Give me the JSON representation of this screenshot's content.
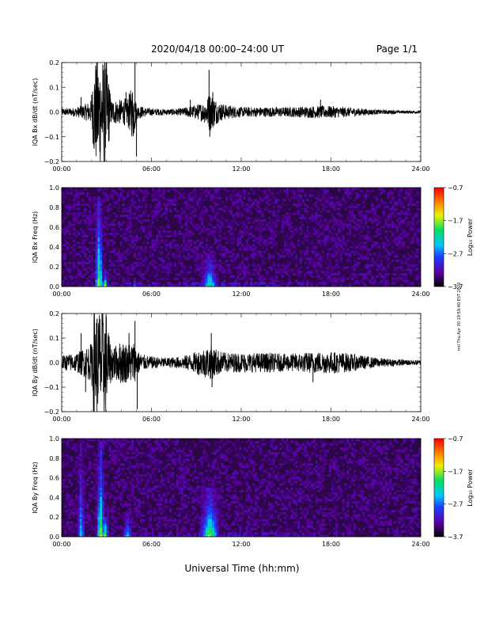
{
  "header": {
    "date_range": "2020/04/18  00:00–24:00 UT",
    "page": "Page 1/1"
  },
  "footer": {
    "xlabel": "Universal Time (hh:mm)"
  },
  "side_note": "mtl Thu Apr 30 19:59:40 EST 2020",
  "colors": {
    "trace": "#000000",
    "spectrogram_background": "#2a0844",
    "colormap": [
      "#000000",
      "#5a00a0",
      "#1e3cff",
      "#00c8ff",
      "#00e060",
      "#f0f000",
      "#ff7800",
      "#ff0000"
    ]
  },
  "chart_data": [
    {
      "type": "line",
      "ylabel": "IQA Bx dB/dt (nT/sec)",
      "ylim": [
        -0.2,
        0.2
      ],
      "yticks": [
        "0.2",
        "0.1",
        "0.0",
        "−0.1",
        "−0.2"
      ],
      "ytick_values": [
        0.2,
        0.1,
        0.0,
        -0.1,
        -0.2
      ],
      "xlim": [
        0,
        24
      ],
      "xticks": [
        "00:00",
        "06:00",
        "12:00",
        "18:00",
        "24:00"
      ],
      "xtick_values": [
        0,
        6,
        12,
        18,
        24
      ],
      "series": [
        {
          "envelope_hours": [
            0,
            0.5,
            1.0,
            1.5,
            2.0,
            2.2,
            2.4,
            3.0,
            3.3,
            3.6,
            4.0,
            4.4,
            4.8,
            5.0,
            5.5,
            6.0,
            7.0,
            8.0,
            9.0,
            9.5,
            9.9,
            10.5,
            11.0,
            12.0,
            13.0,
            14.0,
            15.0,
            16.0,
            17.0,
            17.5,
            18.0,
            19.0,
            20.0,
            21.0,
            22.0,
            23.0,
            24.0
          ],
          "envelope_amplitude": [
            0.015,
            0.015,
            0.02,
            0.03,
            0.05,
            0.22,
            0.22,
            0.22,
            0.05,
            0.05,
            0.05,
            0.06,
            0.12,
            0.03,
            0.02,
            0.015,
            0.012,
            0.015,
            0.03,
            0.04,
            0.08,
            0.04,
            0.03,
            0.02,
            0.02,
            0.02,
            0.02,
            0.022,
            0.025,
            0.025,
            0.025,
            0.02,
            0.015,
            0.01,
            0.008,
            0.006,
            0.006
          ],
          "spikes": [
            [
              1.3,
              0.06
            ],
            [
              2.0,
              0.07
            ],
            [
              3.2,
              0.09
            ],
            [
              4.3,
              0.08
            ],
            [
              4.9,
              0.2
            ],
            [
              5.0,
              -0.18
            ],
            [
              8.6,
              0.05
            ],
            [
              9.85,
              0.17
            ],
            [
              9.9,
              -0.1
            ],
            [
              10.1,
              0.08
            ],
            [
              17.3,
              0.05
            ]
          ]
        }
      ]
    },
    {
      "type": "heatmap",
      "ylabel": "IQA Bx Freq (Hz)",
      "ylim": [
        0,
        1.0
      ],
      "yticks": [
        "1.0",
        "0.8",
        "0.6",
        "0.4",
        "0.2",
        "0.0"
      ],
      "ytick_values": [
        1.0,
        0.8,
        0.6,
        0.4,
        0.2,
        0.0
      ],
      "xlim": [
        0,
        24
      ],
      "xticks": [
        "00:00",
        "06:00",
        "12:00",
        "18:00",
        "24:00"
      ],
      "xtick_values": [
        0,
        6,
        12,
        18,
        24
      ],
      "colorbar": {
        "label": "Log₁₀ Power",
        "min": -3.7,
        "max": -0.7,
        "ticks": [
          "−0.7",
          "−1.7",
          "−2.7",
          "−3.7"
        ],
        "tick_values": [
          -0.7,
          -1.7,
          -2.7,
          -3.7
        ]
      },
      "bursts": [
        {
          "t": 2.5,
          "width": 0.35,
          "fmax": 0.9,
          "peak": -1.4
        },
        {
          "t": 2.9,
          "width": 0.25,
          "fmax": 0.15,
          "peak": -1.2
        },
        {
          "t": 1.2,
          "width": 0.1,
          "fmax": 0.95,
          "peak": -3.2
        },
        {
          "t": 4.9,
          "width": 0.2,
          "fmax": 0.1,
          "peak": -2.4
        },
        {
          "t": 9.9,
          "width": 0.7,
          "fmax": 0.35,
          "peak": -1.9
        }
      ]
    },
    {
      "type": "line",
      "ylabel": "IQA By dB/dt (nT/sec)",
      "ylim": [
        -0.2,
        0.2
      ],
      "yticks": [
        "0.2",
        "0.1",
        "0.0",
        "−0.1",
        "−0.2"
      ],
      "ytick_values": [
        0.2,
        0.1,
        0.0,
        -0.1,
        -0.2
      ],
      "xlim": [
        0,
        24
      ],
      "xticks": [
        "00:00",
        "06:00",
        "12:00",
        "18:00",
        "24:00"
      ],
      "xtick_values": [
        0,
        6,
        12,
        18,
        24
      ],
      "series": [
        {
          "envelope_hours": [
            0,
            0.5,
            1.0,
            1.5,
            2.0,
            2.1,
            2.4,
            3.0,
            3.2,
            3.6,
            4.0,
            4.4,
            4.8,
            5.2,
            5.6,
            6.0,
            7.0,
            8.0,
            8.8,
            9.5,
            10.0,
            10.5,
            11.0,
            12.0,
            13.0,
            14.0,
            15.0,
            16.0,
            17.0,
            18.0,
            19.0,
            20.0,
            21.0,
            22.0,
            23.0,
            24.0
          ],
          "envelope_amplitude": [
            0.03,
            0.035,
            0.04,
            0.06,
            0.08,
            0.22,
            0.22,
            0.22,
            0.09,
            0.07,
            0.09,
            0.08,
            0.09,
            0.04,
            0.03,
            0.025,
            0.02,
            0.025,
            0.04,
            0.06,
            0.07,
            0.05,
            0.04,
            0.04,
            0.04,
            0.04,
            0.035,
            0.04,
            0.045,
            0.045,
            0.04,
            0.03,
            0.02,
            0.015,
            0.012,
            0.01
          ],
          "spikes": [
            [
              1.3,
              0.12
            ],
            [
              1.6,
              -0.12
            ],
            [
              4.5,
              0.12
            ],
            [
              4.9,
              0.17
            ],
            [
              5.05,
              -0.19
            ],
            [
              10.0,
              0.12
            ],
            [
              10.05,
              -0.1
            ],
            [
              16.8,
              -0.08
            ]
          ]
        }
      ]
    },
    {
      "type": "heatmap",
      "ylabel": "IQA By Freq (Hz)",
      "ylim": [
        0,
        1.0
      ],
      "yticks": [
        "1.0",
        "0.8",
        "0.6",
        "0.4",
        "0.2",
        "0.0"
      ],
      "ytick_values": [
        1.0,
        0.8,
        0.6,
        0.4,
        0.2,
        0.0
      ],
      "xlim": [
        0,
        24
      ],
      "xticks": [
        "00:00",
        "06:00",
        "12:00",
        "18:00",
        "24:00"
      ],
      "xtick_values": [
        0,
        6,
        12,
        18,
        24
      ],
      "colorbar": {
        "label": "Log₁₀ Power",
        "min": -3.7,
        "max": -0.7,
        "ticks": [
          "−0.7",
          "−1.7",
          "−2.7",
          "−3.7"
        ],
        "tick_values": [
          -0.7,
          -1.7,
          -2.7,
          -3.7
        ]
      },
      "bursts": [
        {
          "t": 1.3,
          "width": 0.3,
          "fmax": 0.98,
          "peak": -2.2
        },
        {
          "t": 2.6,
          "width": 0.35,
          "fmax": 0.98,
          "peak": -1.5
        },
        {
          "t": 2.9,
          "width": 0.3,
          "fmax": 0.2,
          "peak": -1.1
        },
        {
          "t": 4.4,
          "width": 0.4,
          "fmax": 0.25,
          "peak": -2.1
        },
        {
          "t": 9.9,
          "width": 0.8,
          "fmax": 0.5,
          "peak": -1.5
        }
      ]
    }
  ]
}
